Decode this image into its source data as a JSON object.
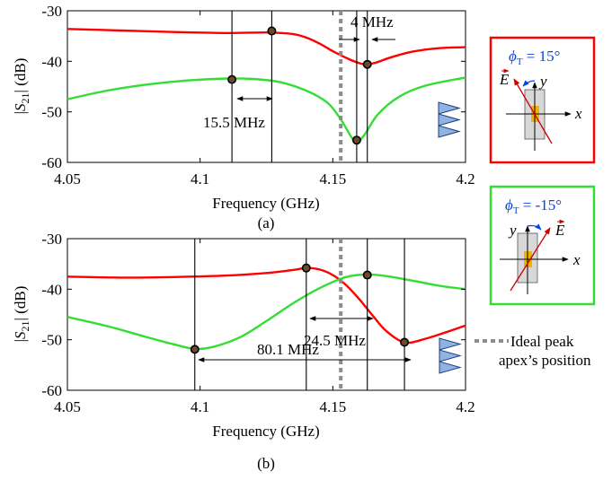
{
  "chart_data": [
    {
      "type": "line",
      "panel_label": "(a)",
      "xlabel": "Frequency (GHz)",
      "ylabel": "|S21| (dB)",
      "xlim": [
        4.05,
        4.2
      ],
      "ylim": [
        -60,
        -30
      ],
      "xticks": [
        "4.05",
        "4.1",
        "4.15",
        "4.2"
      ],
      "yticks": [
        "-60",
        "-50",
        "-40",
        "-30"
      ],
      "grid": false,
      "series": [
        {
          "color": "#ff0000",
          "x": [
            4.05,
            4.07,
            4.09,
            4.11,
            4.125,
            4.135,
            4.14,
            4.145,
            4.15,
            4.155,
            4.158,
            4.162,
            4.166,
            4.172,
            4.18,
            4.19,
            4.2
          ],
          "y": [
            -33.6,
            -33.9,
            -34.2,
            -34.4,
            -34.3,
            -34.6,
            -35.3,
            -36.5,
            -38,
            -39.3,
            -40,
            -40.6,
            -40.3,
            -39.2,
            -38.1,
            -37.4,
            -37.2
          ]
        },
        {
          "color": "#33dd33",
          "x": [
            4.05,
            4.065,
            4.08,
            4.095,
            4.11,
            4.12,
            4.13,
            4.14,
            4.148,
            4.153,
            4.157,
            4.159,
            4.162,
            4.167,
            4.175,
            4.185,
            4.2
          ],
          "y": [
            -47.5,
            -45.8,
            -44.6,
            -43.8,
            -43.4,
            -43.5,
            -44.1,
            -45.8,
            -48.2,
            -51.5,
            -55,
            -56,
            -54.5,
            -50.5,
            -47,
            -44.8,
            -43.2
          ]
        }
      ],
      "markers": [
        {
          "x": 4.112,
          "y": -43.6
        },
        {
          "x": 4.127,
          "y": -34.0
        },
        {
          "x": 4.159,
          "y": -55.6
        },
        {
          "x": 4.163,
          "y": -40.6
        }
      ],
      "annotations": [
        "15.5 MHz",
        "4 MHz"
      ]
    },
    {
      "type": "line",
      "panel_label": "(b)",
      "xlabel": "Frequency (GHz)",
      "ylabel": "|S21| (dB)",
      "xlim": [
        4.05,
        4.2
      ],
      "ylim": [
        -60,
        -30
      ],
      "xticks": [
        "4.05",
        "4.1",
        "4.15",
        "4.2"
      ],
      "yticks": [
        "-60",
        "-50",
        "-40",
        "-30"
      ],
      "grid": false,
      "series": [
        {
          "color": "#ff0000",
          "x": [
            4.05,
            4.07,
            4.09,
            4.11,
            4.125,
            4.135,
            4.14,
            4.145,
            4.15,
            4.155,
            4.16,
            4.165,
            4.17,
            4.177,
            4.185,
            4.2
          ],
          "y": [
            -37.5,
            -37.7,
            -37.6,
            -37.3,
            -36.8,
            -36.2,
            -35.8,
            -36.1,
            -37.2,
            -39.2,
            -42,
            -45.2,
            -48.2,
            -50.5,
            -49.8,
            -47.2
          ]
        },
        {
          "color": "#33dd33",
          "x": [
            4.05,
            4.065,
            4.08,
            4.09,
            4.098,
            4.105,
            4.115,
            4.125,
            4.135,
            4.145,
            4.155,
            4.163,
            4.17,
            4.18,
            4.19,
            4.2
          ],
          "y": [
            -45.5,
            -47.3,
            -49.5,
            -50.9,
            -51.8,
            -51.4,
            -49.5,
            -46.3,
            -42.8,
            -39.8,
            -37.6,
            -37.1,
            -37.4,
            -38.3,
            -39.3,
            -40
          ]
        }
      ],
      "markers": [
        {
          "x": 4.098,
          "y": -51.9
        },
        {
          "x": 4.14,
          "y": -35.8
        },
        {
          "x": 4.163,
          "y": -37.2
        },
        {
          "x": 4.177,
          "y": -50.5
        }
      ],
      "annotations": [
        "24.5 MHz",
        "80.1 MHz"
      ]
    }
  ],
  "legend": {
    "ideal_line": "Ideal peak apex's position",
    "ideal_line_1": "Ideal peak",
    "ideal_line_2": "apex’s position",
    "ideal_x": 4.153
  },
  "insets": [
    {
      "phi_symbol": "ϕ",
      "phi_sub": "T",
      "angle_text": " = 15°",
      "border_color": "#ff0000",
      "x_label": "x",
      "y_label": "y",
      "E_label": "E"
    },
    {
      "phi_symbol": "ϕ",
      "phi_sub": "T",
      "angle_text": " = -15°",
      "border_color": "#33dd33",
      "x_label": "x",
      "y_label": "y",
      "E_label": "E"
    }
  ]
}
